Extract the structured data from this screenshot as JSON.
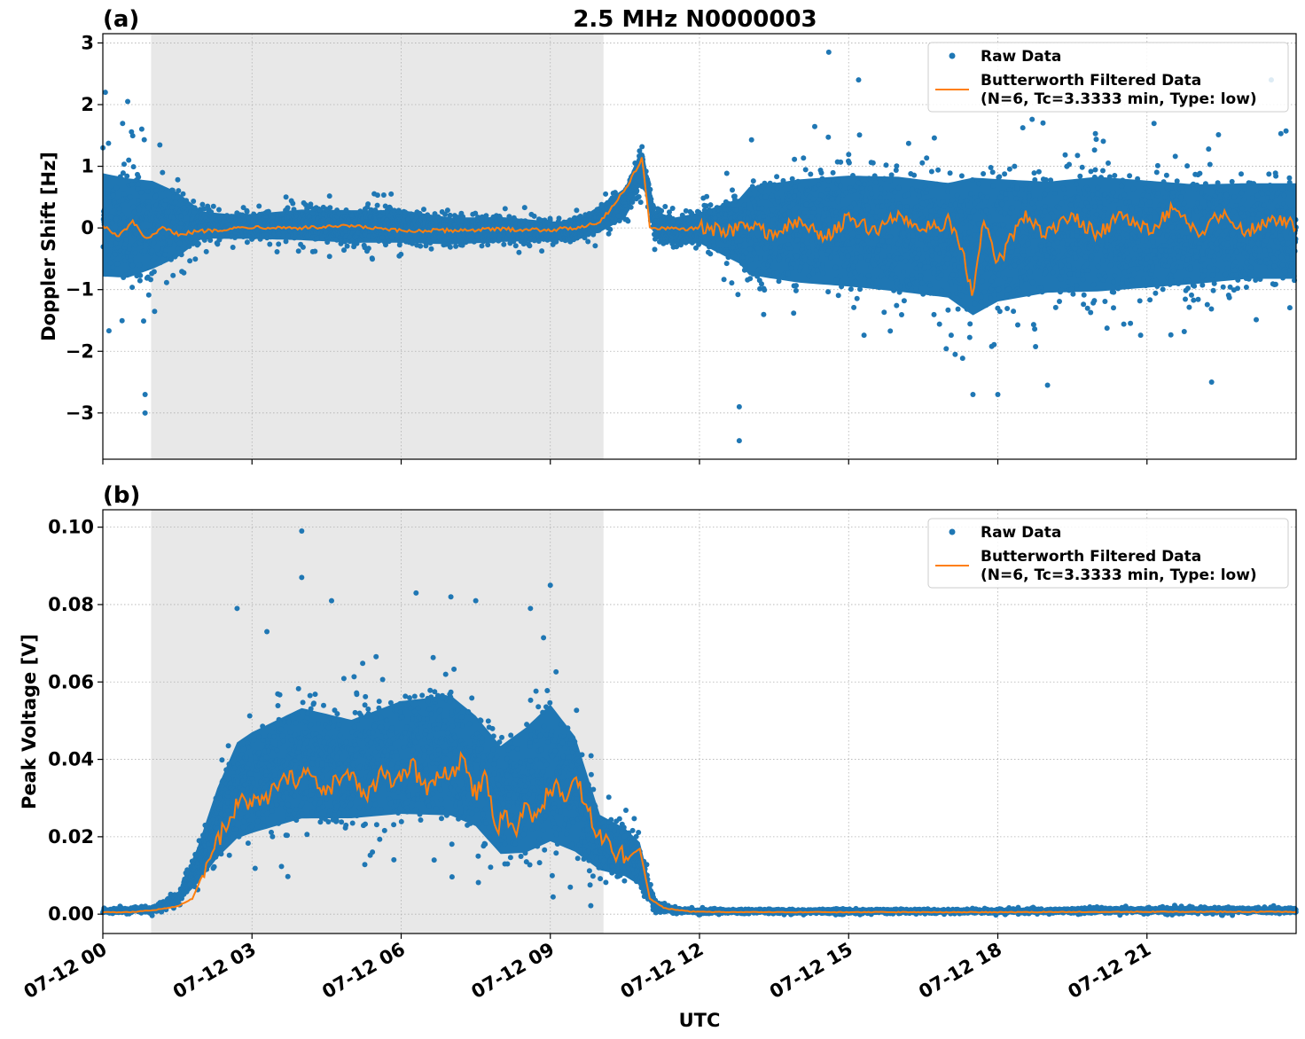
{
  "figure": {
    "title": "2.5 MHz N0000003",
    "xlabel": "UTC"
  },
  "colors": {
    "raw": "#1f77b4",
    "filtered": "#ff7f0e",
    "shade": "#e8e8e8",
    "grid": "#b0b0b0"
  },
  "chart_data": [
    {
      "panel_label": "(a)",
      "type": "scatter",
      "ylabel": "Doppler Shift [Hz]",
      "xlim_hours": [
        0,
        24
      ],
      "ylim": [
        -3.75,
        3.15
      ],
      "yticks": [
        3,
        2,
        1,
        0,
        -1,
        -2,
        -3
      ],
      "ytick_labels": [
        "3",
        "2",
        "1",
        "0",
        "−1",
        "−2",
        "−3"
      ],
      "shaded_interval_hours": [
        0.97,
        10.07
      ],
      "grid": true,
      "legend": {
        "placement": "top-right",
        "raw_label": "Raw Data",
        "filtered_label_line1": "Butterworth Filtered Data",
        "filtered_label_line2": "(N=6, Tc=3.3333 min, Type: low)"
      },
      "series": [
        {
          "name": "Raw Data",
          "envelope": {
            "x_hours": [
              0,
              0.5,
              1,
              1.5,
              2,
              2.5,
              3,
              4,
              5,
              6,
              7,
              8,
              9,
              9.5,
              10,
              10.5,
              10.85,
              11.1,
              11.5,
              12,
              12.8,
              13,
              14,
              15,
              16,
              17,
              17.5,
              18,
              19,
              20,
              21,
              22,
              23,
              24
            ],
            "upper": [
              1.4,
              1.3,
              1.2,
              0.9,
              0.4,
              0.35,
              0.35,
              0.45,
              0.45,
              0.45,
              0.3,
              0.3,
              0.2,
              0.2,
              0.5,
              0.8,
              1.5,
              0.4,
              0.3,
              0.4,
              0.8,
              1.1,
              1.3,
              1.4,
              1.4,
              1.3,
              1.5,
              1.4,
              1.3,
              1.4,
              1.3,
              1.2,
              1.2,
              1.2
            ],
            "lower": [
              -1.3,
              -1.3,
              -1.1,
              -0.8,
              -0.3,
              -0.3,
              -0.3,
              -0.35,
              -0.4,
              -0.4,
              -0.4,
              -0.35,
              -0.3,
              -0.3,
              -0.2,
              0.0,
              0.6,
              -0.3,
              -0.4,
              -0.4,
              -0.9,
              -1.2,
              -1.4,
              -1.5,
              -1.6,
              -1.7,
              -2.1,
              -1.8,
              -1.6,
              -1.6,
              -1.5,
              -1.4,
              -1.3,
              -1.3
            ]
          },
          "outliers": [
            {
              "x": 0.85,
              "y": -3.0
            },
            {
              "x": 0.85,
              "y": -2.7
            },
            {
              "x": 0.05,
              "y": 2.2
            },
            {
              "x": 0.5,
              "y": 2.05
            },
            {
              "x": 12.8,
              "y": -3.45
            },
            {
              "x": 12.8,
              "y": -2.9
            },
            {
              "x": 14.6,
              "y": 2.85
            },
            {
              "x": 15.2,
              "y": 2.4
            },
            {
              "x": 17.5,
              "y": -2.7
            },
            {
              "x": 18.0,
              "y": -2.7
            },
            {
              "x": 19.0,
              "y": -2.55
            },
            {
              "x": 22.3,
              "y": -2.5
            },
            {
              "x": 23.5,
              "y": 2.4
            }
          ]
        },
        {
          "name": "Butterworth Filtered Data",
          "type": "line",
          "x_hours": [
            0,
            0.3,
            0.6,
            0.9,
            1.2,
            1.5,
            2,
            3,
            4,
            5,
            6,
            7,
            8,
            9,
            9.5,
            10,
            10.3,
            10.6,
            10.85,
            11.0,
            11.5,
            12,
            12.5,
            13,
            13.5,
            14,
            14.5,
            15,
            15.5,
            16,
            16.5,
            17,
            17.3,
            17.5,
            17.7,
            18,
            18.5,
            19,
            19.5,
            20,
            20.5,
            21,
            21.5,
            22,
            22.5,
            23,
            23.5,
            24
          ],
          "y": [
            0.05,
            -0.15,
            0.1,
            -0.2,
            0.0,
            -0.1,
            -0.05,
            0.02,
            0.0,
            0.03,
            -0.05,
            -0.04,
            -0.02,
            -0.03,
            0.0,
            0.1,
            0.4,
            0.75,
            1.15,
            0.0,
            -0.02,
            0.0,
            -0.05,
            0.05,
            -0.1,
            0.1,
            -0.15,
            0.15,
            -0.05,
            0.2,
            0.0,
            0.1,
            -0.4,
            -1.2,
            0.2,
            -0.6,
            0.2,
            -0.1,
            0.2,
            -0.1,
            0.2,
            -0.05,
            0.3,
            -0.1,
            0.25,
            -0.05,
            0.15,
            0.05
          ]
        }
      ]
    },
    {
      "panel_label": "(b)",
      "type": "scatter",
      "ylabel": "Peak Voltage [V]",
      "xlim_hours": [
        0,
        24
      ],
      "ylim": [
        -0.005,
        0.1045
      ],
      "yticks": [
        0.1,
        0.08,
        0.06,
        0.04,
        0.02,
        0.0
      ],
      "ytick_labels": [
        "0.10",
        "0.08",
        "0.06",
        "0.04",
        "0.02",
        "0.00"
      ],
      "shaded_interval_hours": [
        0.97,
        10.07
      ],
      "grid": true,
      "xticks_hours": [
        0,
        3,
        6,
        9,
        12,
        15,
        18,
        21
      ],
      "xtick_labels": [
        "07-12 00",
        "07-12 03",
        "07-12 06",
        "07-12 09",
        "07-12 12",
        "07-12 15",
        "07-12 18",
        "07-12 21"
      ],
      "legend": {
        "placement": "top-right",
        "raw_label": "Raw Data",
        "filtered_label_line1": "Butterworth Filtered Data",
        "filtered_label_line2": "(N=6, Tc=3.3333 min, Type: low)"
      },
      "series": [
        {
          "name": "Raw Data",
          "envelope": {
            "x_hours": [
              0,
              1,
              1.5,
              1.9,
              2.3,
              2.7,
              3,
              4,
              5,
              6,
              7,
              7.5,
              8,
              8.5,
              9,
              9.5,
              10,
              10.5,
              10.8,
              11.1,
              11.5,
              12,
              15,
              18,
              21,
              24
            ],
            "upper": [
              0.0015,
              0.0025,
              0.006,
              0.02,
              0.038,
              0.052,
              0.055,
              0.062,
              0.058,
              0.064,
              0.066,
              0.06,
              0.052,
              0.058,
              0.065,
              0.055,
              0.03,
              0.026,
              0.022,
              0.004,
              0.002,
              0.0015,
              0.0015,
              0.0015,
              0.002,
              0.002
            ],
            "lower": [
              0.0,
              0.0,
              0.002,
              0.005,
              0.009,
              0.012,
              0.013,
              0.016,
              0.017,
              0.017,
              0.016,
              0.014,
              0.007,
              0.006,
              0.008,
              0.007,
              0.007,
              0.006,
              0.004,
              0.0,
              0.0,
              0.0,
              0.0,
              0.0,
              0.0,
              0.0
            ]
          },
          "outliers": [
            {
              "x": 4.0,
              "y": 0.099
            },
            {
              "x": 4.0,
              "y": 0.087
            },
            {
              "x": 4.6,
              "y": 0.081
            },
            {
              "x": 6.3,
              "y": 0.083
            },
            {
              "x": 7.0,
              "y": 0.082
            },
            {
              "x": 7.5,
              "y": 0.081
            },
            {
              "x": 8.6,
              "y": 0.079
            },
            {
              "x": 9.0,
              "y": 0.085
            },
            {
              "x": 2.7,
              "y": 0.079
            },
            {
              "x": 3.3,
              "y": 0.073
            }
          ]
        },
        {
          "name": "Butterworth Filtered Data",
          "type": "line",
          "x_hours": [
            0,
            0.5,
            1,
            1.5,
            1.8,
            2.0,
            2.2,
            2.5,
            2.8,
            3.0,
            3.3,
            3.6,
            3.9,
            4.1,
            4.4,
            4.7,
            5.0,
            5.3,
            5.6,
            5.9,
            6.2,
            6.5,
            6.8,
            7.0,
            7.2,
            7.5,
            7.7,
            7.9,
            8.1,
            8.3,
            8.5,
            8.7,
            8.9,
            9.1,
            9.3,
            9.5,
            9.7,
            10.0,
            10.3,
            10.6,
            10.8,
            11.0,
            11.3,
            11.8,
            12.5,
            15,
            18,
            21,
            24
          ],
          "y": [
            0.0005,
            0.0005,
            0.001,
            0.002,
            0.004,
            0.01,
            0.016,
            0.024,
            0.03,
            0.028,
            0.03,
            0.034,
            0.035,
            0.037,
            0.031,
            0.034,
            0.036,
            0.03,
            0.036,
            0.033,
            0.039,
            0.032,
            0.037,
            0.035,
            0.04,
            0.031,
            0.036,
            0.022,
            0.026,
            0.021,
            0.028,
            0.024,
            0.03,
            0.034,
            0.028,
            0.036,
            0.028,
            0.02,
            0.016,
            0.015,
            0.017,
            0.004,
            0.0015,
            0.0007,
            0.0005,
            0.0005,
            0.0005,
            0.0006,
            0.0006
          ]
        }
      ]
    }
  ]
}
